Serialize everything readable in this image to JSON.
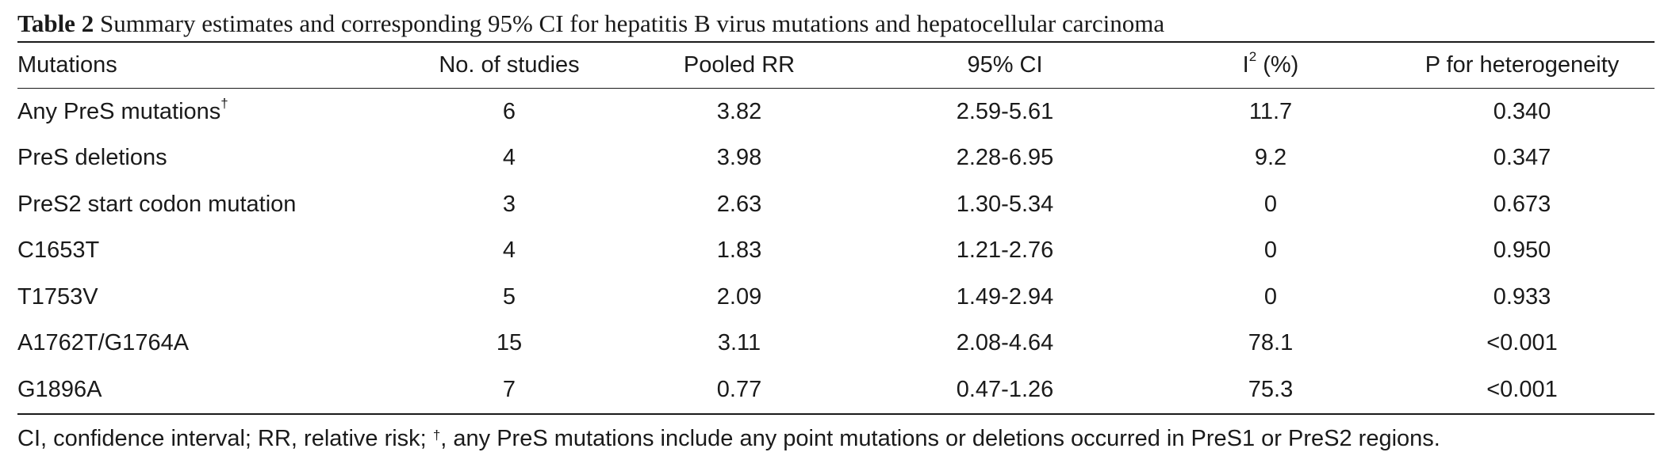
{
  "caption": {
    "label": "Table 2",
    "text": "Summary estimates and corresponding 95% CI for hepatitis B virus mutations and hepatocellular carcinoma"
  },
  "headers": {
    "mutations": "Mutations",
    "studies": "No. of studies",
    "pooled_rr": "Pooled RR",
    "ci": "95% CI",
    "i2_base": "I",
    "i2_sup": "2",
    "i2_unit": " (%)",
    "p_het": "P for heterogeneity"
  },
  "rows": [
    {
      "mutation": "Any PreS mutations",
      "mark": "†",
      "studies": "6",
      "rr": "3.82",
      "ci": "2.59-5.61",
      "i2": "11.7",
      "p": "0.340"
    },
    {
      "mutation": "PreS deletions",
      "mark": "",
      "studies": "4",
      "rr": "3.98",
      "ci": "2.28-6.95",
      "i2": "9.2",
      "p": "0.347"
    },
    {
      "mutation": "PreS2 start codon mutation",
      "mark": "",
      "studies": "3",
      "rr": "2.63",
      "ci": "1.30-5.34",
      "i2": "0",
      "p": "0.673"
    },
    {
      "mutation": "C1653T",
      "mark": "",
      "studies": "4",
      "rr": "1.83",
      "ci": "1.21-2.76",
      "i2": "0",
      "p": "0.950"
    },
    {
      "mutation": "T1753V",
      "mark": "",
      "studies": "5",
      "rr": "2.09",
      "ci": "1.49-2.94",
      "i2": "0",
      "p": "0.933"
    },
    {
      "mutation": "A1762T/G1764A",
      "mark": "",
      "studies": "15",
      "rr": "3.11",
      "ci": "2.08-4.64",
      "i2": "78.1",
      "p": "<0.001"
    },
    {
      "mutation": "G1896A",
      "mark": "",
      "studies": "7",
      "rr": "0.77",
      "ci": "0.47-1.26",
      "i2": "75.3",
      "p": "<0.001"
    }
  ],
  "footnote": {
    "before": "CI, confidence interval; RR, relative risk; ",
    "mark": "†",
    "after": ", any PreS mutations include any point mutations or deletions occurred in PreS1 or PreS2 regions."
  }
}
